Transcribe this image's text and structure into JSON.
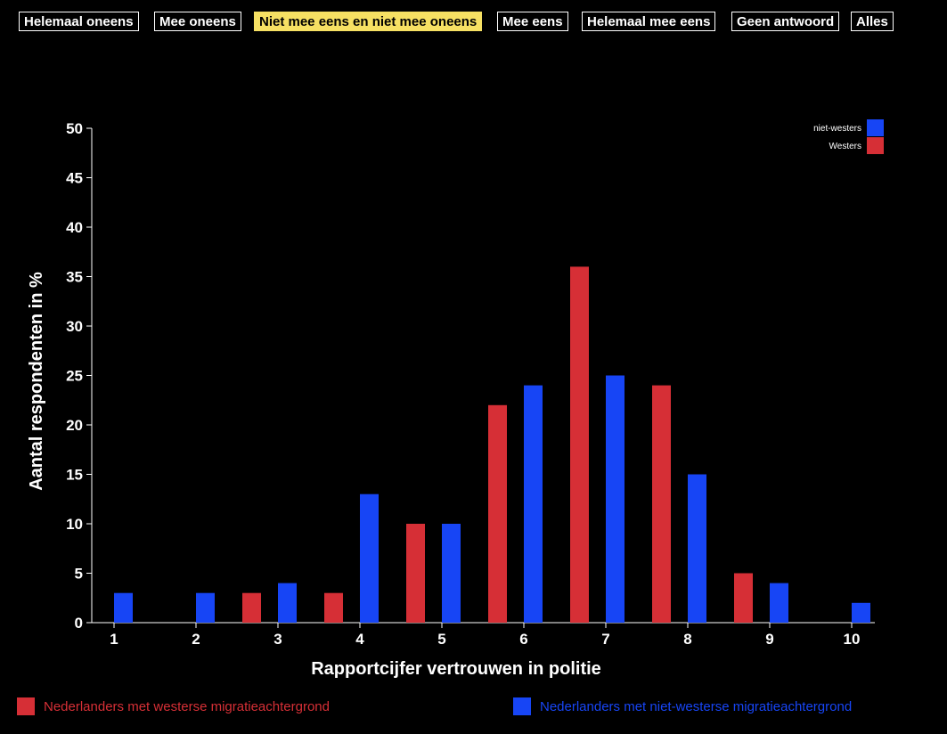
{
  "filters": {
    "buttons": [
      {
        "label": "Helemaal oneens",
        "active": false
      },
      {
        "label": "Mee oneens",
        "active": false
      },
      {
        "label": "Niet mee eens en niet mee oneens",
        "active": true
      },
      {
        "label": "Mee eens",
        "active": false
      },
      {
        "label": "Helemaal mee eens",
        "active": false
      },
      {
        "label": "Geen antwoord",
        "active": false
      },
      {
        "label": "Alles",
        "active": false
      }
    ]
  },
  "colors": {
    "westers": "#d62f36",
    "niet_westers": "#1745f5",
    "active_filter": "#f6e063"
  },
  "chart_data": {
    "type": "bar",
    "xlabel": "Rapportcijfer vertrouwen in politie",
    "ylabel": "Aantal respondenten in %",
    "ylim": [
      0,
      50
    ],
    "yticks": [
      0,
      5,
      10,
      15,
      20,
      25,
      30,
      35,
      40,
      45,
      50
    ],
    "categories": [
      "1",
      "2",
      "3",
      "4",
      "5",
      "6",
      "7",
      "8",
      "9",
      "10"
    ],
    "series": [
      {
        "name": "Westers",
        "color": "#d62f36",
        "values": [
          0,
          0,
          3,
          3,
          10,
          22,
          36,
          24,
          5,
          0
        ]
      },
      {
        "name": "niet-westers",
        "color": "#1745f5",
        "values": [
          3,
          3,
          4,
          13,
          10,
          24,
          25,
          15,
          4,
          2
        ]
      }
    ],
    "legend_position": "top-right",
    "grid": false
  },
  "bottom_legend": {
    "westers_label": "Nederlanders met westerse migratieachtergrond",
    "niet_westers_label": "Nederlanders met niet-westerse migratieachtergrond"
  }
}
